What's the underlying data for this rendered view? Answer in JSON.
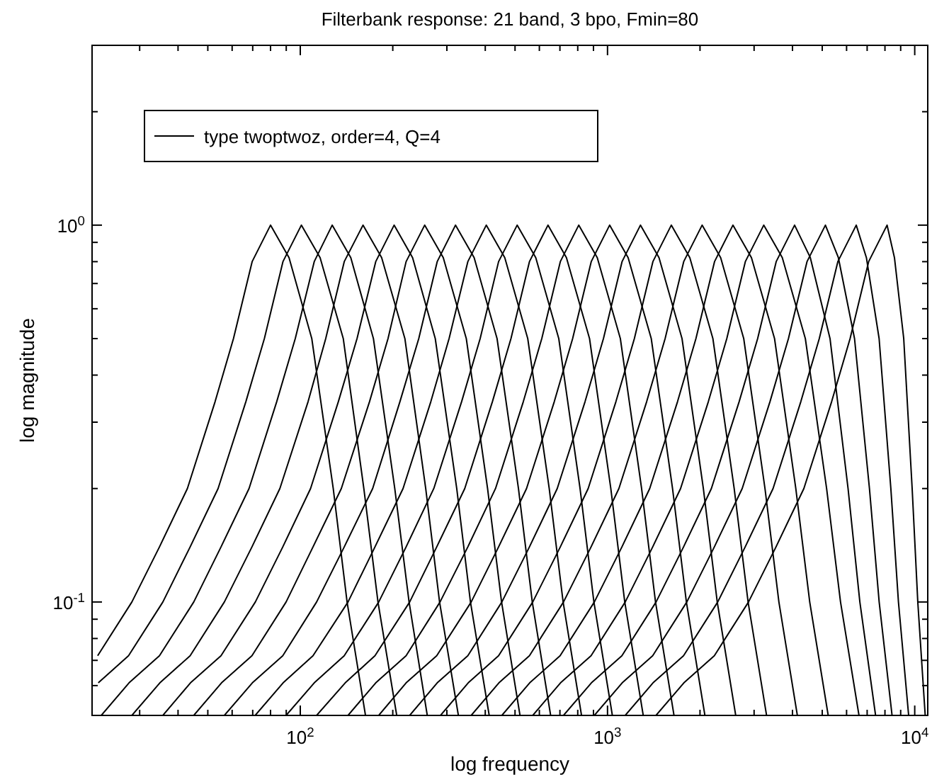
{
  "chart_data": {
    "type": "line",
    "title": "Filterbank response: 21 band, 3 bpo, Fmin=80",
    "xlabel": "log frequency",
    "ylabel": "log magnitude",
    "log": "xy",
    "grid": false,
    "legend": "top left",
    "xlim": [
      21,
      11025
    ],
    "ylim": [
      0.05,
      3
    ],
    "xticks": [
      {
        "value": 30,
        "label": null
      },
      {
        "value": 40,
        "label": null
      },
      {
        "value": 50,
        "label": null
      },
      {
        "value": 60,
        "label": null
      },
      {
        "value": 70,
        "label": null
      },
      {
        "value": 80,
        "label": null
      },
      {
        "value": 90,
        "label": null
      },
      {
        "value": 100,
        "label": "10$^{2}$"
      },
      {
        "value": 200,
        "label": null
      },
      {
        "value": 300,
        "label": null
      },
      {
        "value": 400,
        "label": null
      },
      {
        "value": 500,
        "label": null
      },
      {
        "value": 600,
        "label": null
      },
      {
        "value": 700,
        "label": null
      },
      {
        "value": 800,
        "label": null
      },
      {
        "value": 900,
        "label": null
      },
      {
        "value": 1000,
        "label": "10$^{3}$"
      },
      {
        "value": 2000,
        "label": null
      },
      {
        "value": 3000,
        "label": null
      },
      {
        "value": 4000,
        "label": null
      },
      {
        "value": 5000,
        "label": null
      },
      {
        "value": 6000,
        "label": null
      },
      {
        "value": 7000,
        "label": null
      },
      {
        "value": 8000,
        "label": null
      },
      {
        "value": 9000,
        "label": null
      },
      {
        "value": 10000,
        "label": "10$^{4}$"
      }
    ],
    "yticks": [
      {
        "value": 0.05,
        "label": null
      },
      {
        "value": 0.06,
        "label": null
      },
      {
        "value": 0.07,
        "label": null
      },
      {
        "value": 0.08,
        "label": null
      },
      {
        "value": 0.09,
        "label": null
      },
      {
        "value": 0.1,
        "label": "10$^{-1}$"
      },
      {
        "value": 0.2,
        "label": null
      },
      {
        "value": 0.3,
        "label": null
      },
      {
        "value": 0.4,
        "label": null
      },
      {
        "value": 0.5,
        "label": null
      },
      {
        "value": 0.6,
        "label": null
      },
      {
        "value": 0.7,
        "label": null
      },
      {
        "value": 0.8,
        "label": null
      },
      {
        "value": 0.9,
        "label": null
      },
      {
        "value": 1,
        "label": "10$^{0}$"
      },
      {
        "value": 2,
        "label": null
      },
      {
        "value": 3,
        "label": null
      }
    ],
    "series": [
      {
        "name": "type twoptwoz, order=4, Q=4",
        "color": "#000000",
        "x": [
          21.9,
          28.3,
          34.8,
          42.9,
          52.8,
          60.6,
          69.7,
          80,
          91.9,
          109,
          128,
          142,
          163
        ],
        "values": [
          0.072,
          0.1,
          0.14,
          0.2,
          0.34,
          0.5,
          0.8,
          1,
          0.82,
          0.5,
          0.2,
          0.1,
          0.05
        ]
      },
      {
        "color": "#000000",
        "x": [
          22.0,
          27.6,
          35.7,
          43.8,
          54.0,
          66.5,
          76.4,
          87.8,
          100.8,
          116,
          138,
          161,
          179,
          206
        ],
        "values": [
          0.061,
          0.072,
          0.1,
          0.14,
          0.2,
          0.34,
          0.5,
          0.8,
          1,
          0.82,
          0.5,
          0.2,
          0.1,
          0.05
        ]
      },
      {
        "color": "#000000",
        "x": [
          22.5,
          27.7,
          34.8,
          45.0,
          55.2,
          68.1,
          83.8,
          96.3,
          111,
          127,
          146,
          173,
          203,
          226,
          259
        ],
        "values": [
          0.05,
          0.061,
          0.072,
          0.1,
          0.14,
          0.2,
          0.34,
          0.5,
          0.8,
          1,
          0.82,
          0.5,
          0.2,
          0.1,
          0.05
        ]
      },
      {
        "color": "#000000",
        "x": [
          28.3,
          34.9,
          43.8,
          56.6,
          69.6,
          85.8,
          106,
          121,
          139,
          160,
          184,
          219,
          256,
          284,
          327
        ],
        "values": [
          0.05,
          0.061,
          0.072,
          0.1,
          0.14,
          0.2,
          0.34,
          0.5,
          0.8,
          1,
          0.82,
          0.5,
          0.2,
          0.1,
          0.05
        ]
      },
      {
        "color": "#000000",
        "x": [
          35.7,
          43.9,
          55.2,
          71.4,
          87.7,
          108,
          133,
          153,
          176,
          202,
          232,
          275,
          323,
          358,
          412
        ],
        "values": [
          0.05,
          0.061,
          0.072,
          0.1,
          0.14,
          0.2,
          0.34,
          0.5,
          0.8,
          1,
          0.82,
          0.5,
          0.2,
          0.1,
          0.05
        ]
      },
      {
        "color": "#000000",
        "x": [
          45.0,
          55.4,
          69.6,
          89.9,
          110,
          136,
          168,
          193,
          221,
          254,
          292,
          347,
          407,
          452,
          519
        ],
        "values": [
          0.05,
          0.061,
          0.072,
          0.1,
          0.14,
          0.2,
          0.34,
          0.5,
          0.8,
          1,
          0.82,
          0.5,
          0.2,
          0.1,
          0.05
        ]
      },
      {
        "color": "#000000",
        "x": [
          56.6,
          69.8,
          87.7,
          113,
          139,
          172,
          211,
          243,
          279,
          320,
          368,
          437,
          513,
          569,
          653
        ],
        "values": [
          0.05,
          0.061,
          0.072,
          0.1,
          0.14,
          0.2,
          0.34,
          0.5,
          0.8,
          1,
          0.82,
          0.5,
          0.2,
          0.1,
          0.05
        ]
      },
      {
        "color": "#000000",
        "x": [
          71.3,
          87.9,
          110,
          143,
          175,
          216,
          266,
          305,
          351,
          403,
          463,
          550,
          646,
          717,
          823
        ],
        "values": [
          0.05,
          0.061,
          0.072,
          0.1,
          0.14,
          0.2,
          0.34,
          0.5,
          0.8,
          1,
          0.82,
          0.5,
          0.2,
          0.1,
          0.05
        ]
      },
      {
        "color": "#000000",
        "x": [
          89.9,
          111,
          139,
          180,
          221,
          272,
          335,
          385,
          442,
          508,
          584,
          694,
          814,
          903,
          1037
        ],
        "values": [
          0.05,
          0.061,
          0.072,
          0.1,
          0.14,
          0.2,
          0.34,
          0.5,
          0.8,
          1,
          0.82,
          0.5,
          0.2,
          0.1,
          0.05
        ]
      },
      {
        "color": "#000000",
        "x": [
          113,
          140,
          175,
          227,
          278,
          343,
          422,
          485,
          557,
          640,
          735,
          874,
          1025,
          1138,
          1307
        ],
        "values": [
          0.05,
          0.061,
          0.072,
          0.1,
          0.14,
          0.2,
          0.34,
          0.5,
          0.8,
          1,
          0.82,
          0.5,
          0.2,
          0.1,
          0.05
        ]
      },
      {
        "color": "#000000",
        "x": [
          143,
          176,
          221,
          285,
          351,
          432,
          532,
          611,
          702,
          806,
          926,
          1101,
          1291,
          1433,
          1646
        ],
        "values": [
          0.05,
          0.061,
          0.072,
          0.1,
          0.14,
          0.2,
          0.34,
          0.5,
          0.8,
          1,
          0.82,
          0.5,
          0.2,
          0.1,
          0.05
        ]
      },
      {
        "color": "#000000",
        "x": [
          180,
          221,
          278,
          360,
          442,
          545,
          671,
          770,
          885,
          1016,
          1167,
          1388,
          1628,
          1806,
          2075
        ],
        "values": [
          0.05,
          0.061,
          0.072,
          0.1,
          0.14,
          0.2,
          0.34,
          0.5,
          0.8,
          1,
          0.82,
          0.5,
          0.2,
          0.1,
          0.05
        ]
      },
      {
        "color": "#000000",
        "x": [
          227,
          279,
          351,
          453,
          557,
          686,
          845,
          970,
          1115,
          1280,
          1471,
          1748,
          2051,
          2276,
          2614
        ],
        "values": [
          0.05,
          0.061,
          0.072,
          0.1,
          0.14,
          0.2,
          0.34,
          0.5,
          0.8,
          1,
          0.82,
          0.5,
          0.2,
          0.1,
          0.05
        ]
      },
      {
        "color": "#000000",
        "x": [
          286,
          352,
          442,
          571,
          702,
          865,
          1065,
          1223,
          1405,
          1613,
          1853,
          2203,
          2584,
          2868,
          3294
        ],
        "values": [
          0.05,
          0.061,
          0.072,
          0.1,
          0.14,
          0.2,
          0.34,
          0.5,
          0.8,
          1,
          0.82,
          0.5,
          0.2,
          0.1,
          0.05
        ]
      },
      {
        "color": "#000000",
        "x": [
          360,
          443,
          557,
          719,
          884,
          1089,
          1341,
          1540,
          1770,
          2032,
          2335,
          2776,
          3255,
          3613,
          4149
        ],
        "values": [
          0.05,
          0.061,
          0.072,
          0.1,
          0.14,
          0.2,
          0.34,
          0.5,
          0.8,
          1,
          0.82,
          0.5,
          0.2,
          0.1,
          0.05
        ]
      },
      {
        "color": "#000000",
        "x": [
          453,
          558,
          701,
          906,
          1114,
          1372,
          1690,
          1940,
          2230,
          2560,
          2941,
          3497,
          4101,
          4552,
          5228
        ],
        "values": [
          0.05,
          0.061,
          0.072,
          0.1,
          0.14,
          0.2,
          0.34,
          0.5,
          0.8,
          1,
          0.82,
          0.5,
          0.2,
          0.1,
          0.05
        ]
      },
      {
        "color": "#000000",
        "x": [
          571,
          703,
          884,
          1142,
          1403,
          1729,
          2129,
          2445,
          2809,
          3225,
          3706,
          4405,
          5166,
          5734,
          6585
        ],
        "values": [
          0.05,
          0.061,
          0.072,
          0.1,
          0.14,
          0.2,
          0.34,
          0.5,
          0.8,
          1,
          0.82,
          0.5,
          0.2,
          0.1,
          0.05
        ]
      },
      {
        "color": "#000000",
        "x": [
          719,
          886,
          1114,
          1439,
          1768,
          2178,
          2682,
          3081,
          3540,
          4064,
          4572,
          5300,
          6067,
          6628,
          7457
        ],
        "values": [
          0.05,
          0.061,
          0.072,
          0.1,
          0.14,
          0.2,
          0.34,
          0.5,
          0.8,
          1,
          0.82,
          0.5,
          0.2,
          0.1,
          0.05
        ]
      },
      {
        "color": "#000000",
        "x": [
          906,
          1116,
          1403,
          1812,
          2227,
          2744,
          3379,
          3881,
          4460,
          5120,
          5642,
          6369,
          7122,
          7660,
          8438
        ],
        "values": [
          0.05,
          0.061,
          0.072,
          0.1,
          0.14,
          0.2,
          0.34,
          0.5,
          0.8,
          1,
          0.82,
          0.5,
          0.2,
          0.1,
          0.05
        ]
      },
      {
        "color": "#000000",
        "x": [
          1142,
          1406,
          1768,
          2284,
          2806,
          3458,
          4258,
          4890,
          5619,
          6451,
          6961,
          7657,
          8361,
          8851,
          9554
        ],
        "values": [
          0.05,
          0.061,
          0.072,
          0.1,
          0.14,
          0.2,
          0.34,
          0.5,
          0.8,
          1,
          0.82,
          0.5,
          0.2,
          0.1,
          0.05
        ]
      },
      {
        "color": "#000000",
        "x": [
          1438,
          1772,
          2227,
          2877,
          3535,
          4356,
          5364,
          6160,
          7079,
          8127,
          8590,
          9208,
          9809,
          10232,
          10817
        ],
        "values": [
          0.05,
          0.061,
          0.072,
          0.1,
          0.14,
          0.2,
          0.34,
          0.5,
          0.8,
          1,
          0.82,
          0.5,
          0.2,
          0.1,
          0.05
        ]
      }
    ]
  }
}
